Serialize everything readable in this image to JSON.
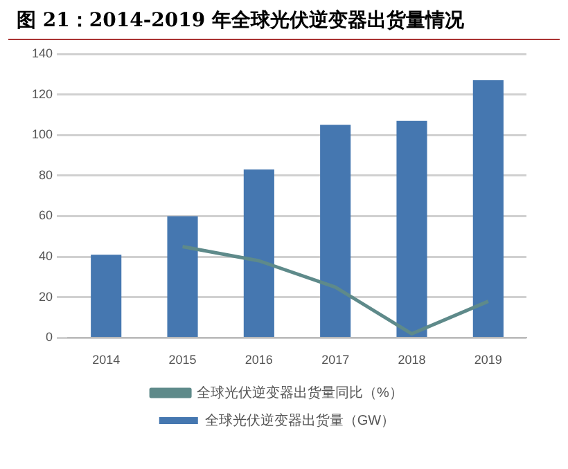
{
  "chart_data": {
    "type": "bar",
    "title": "图 21：2014-2019 年全球光伏逆变器出货量情况",
    "categories": [
      "2014",
      "2015",
      "2016",
      "2017",
      "2018",
      "2019"
    ],
    "series": [
      {
        "name": "全球光伏逆变器出货量（GW）",
        "color": "#4577b0",
        "values": [
          41,
          60,
          83,
          105,
          107,
          127
        ]
      },
      {
        "name": "全球光伏逆变器出货量同比（%）",
        "type": "line",
        "color": "#5e8a8a",
        "marker": "none",
        "values": [
          null,
          45,
          38,
          25,
          2,
          18
        ]
      }
    ],
    "ylim": [
      0,
      140
    ],
    "yticks": [
      0,
      20,
      40,
      60,
      80,
      100,
      120,
      140
    ],
    "grid": "y",
    "legend": "bottom"
  }
}
